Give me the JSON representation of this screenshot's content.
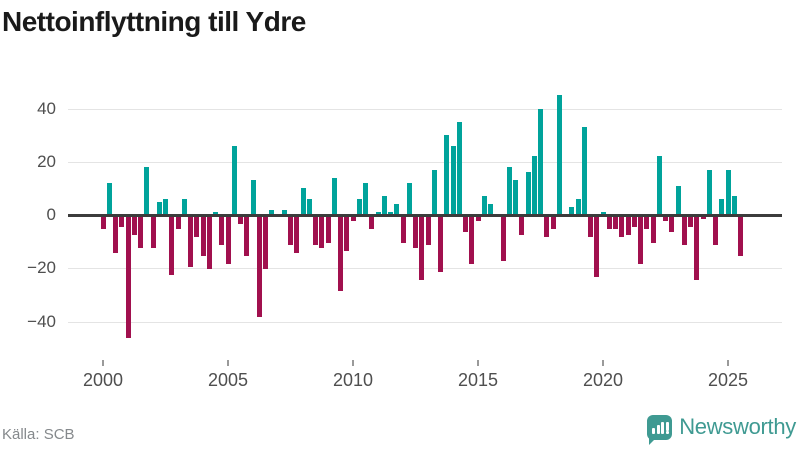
{
  "title": "Nettoinflyttning till Ydre",
  "source": "Källa: SCB",
  "branding": {
    "name": "Newsworthy"
  },
  "colors": {
    "positive": "#00a39b",
    "negative": "#a1104e",
    "grid": "#e4e4e4",
    "zero_line": "#3c3c3c",
    "axis_text": "#4f4f4f",
    "source_text": "#85898c",
    "brand": "#3f9a92",
    "title_text": "#1a1a1a"
  },
  "chart_data": {
    "type": "bar",
    "title": "Nettoinflyttning till Ydre",
    "x_start": "2000 Q1",
    "frequency": "quarterly",
    "values": [
      -5,
      12,
      -14,
      -4,
      -46,
      -7,
      -12,
      18,
      -12,
      5,
      6,
      -22,
      -5,
      6,
      -19,
      -8,
      -15,
      -20,
      1,
      -11,
      -18,
      26,
      -3,
      -15,
      13,
      -38,
      -20,
      2,
      0,
      2,
      -11,
      -14,
      10,
      6,
      -11,
      -12,
      -10,
      14,
      -28,
      -13,
      -2,
      6,
      12,
      -5,
      1,
      7,
      1,
      4,
      -10,
      12,
      -12,
      -24,
      -11,
      17,
      -21,
      30,
      26,
      35,
      -6,
      -18,
      -2,
      7,
      4,
      0,
      -17,
      18,
      13,
      -7,
      16,
      22,
      40,
      -8,
      -5,
      45,
      0,
      3,
      6,
      33,
      -8,
      -23,
      1,
      -5,
      -5,
      -8,
      -7,
      -4,
      -18,
      -5,
      -10,
      22,
      -2,
      -6,
      11,
      -11,
      -4,
      -24,
      -1,
      17,
      -11,
      6,
      17,
      7,
      -15
    ],
    "y_ticks": [
      40,
      20,
      0,
      -20,
      -40
    ],
    "y_tick_labels": [
      "40",
      "20",
      "0",
      "−20",
      "−40"
    ],
    "x_tick_years": [
      2000,
      2005,
      2010,
      2015,
      2020,
      2025
    ],
    "ylim": [
      -50,
      50
    ],
    "grid": true,
    "legend": false
  }
}
